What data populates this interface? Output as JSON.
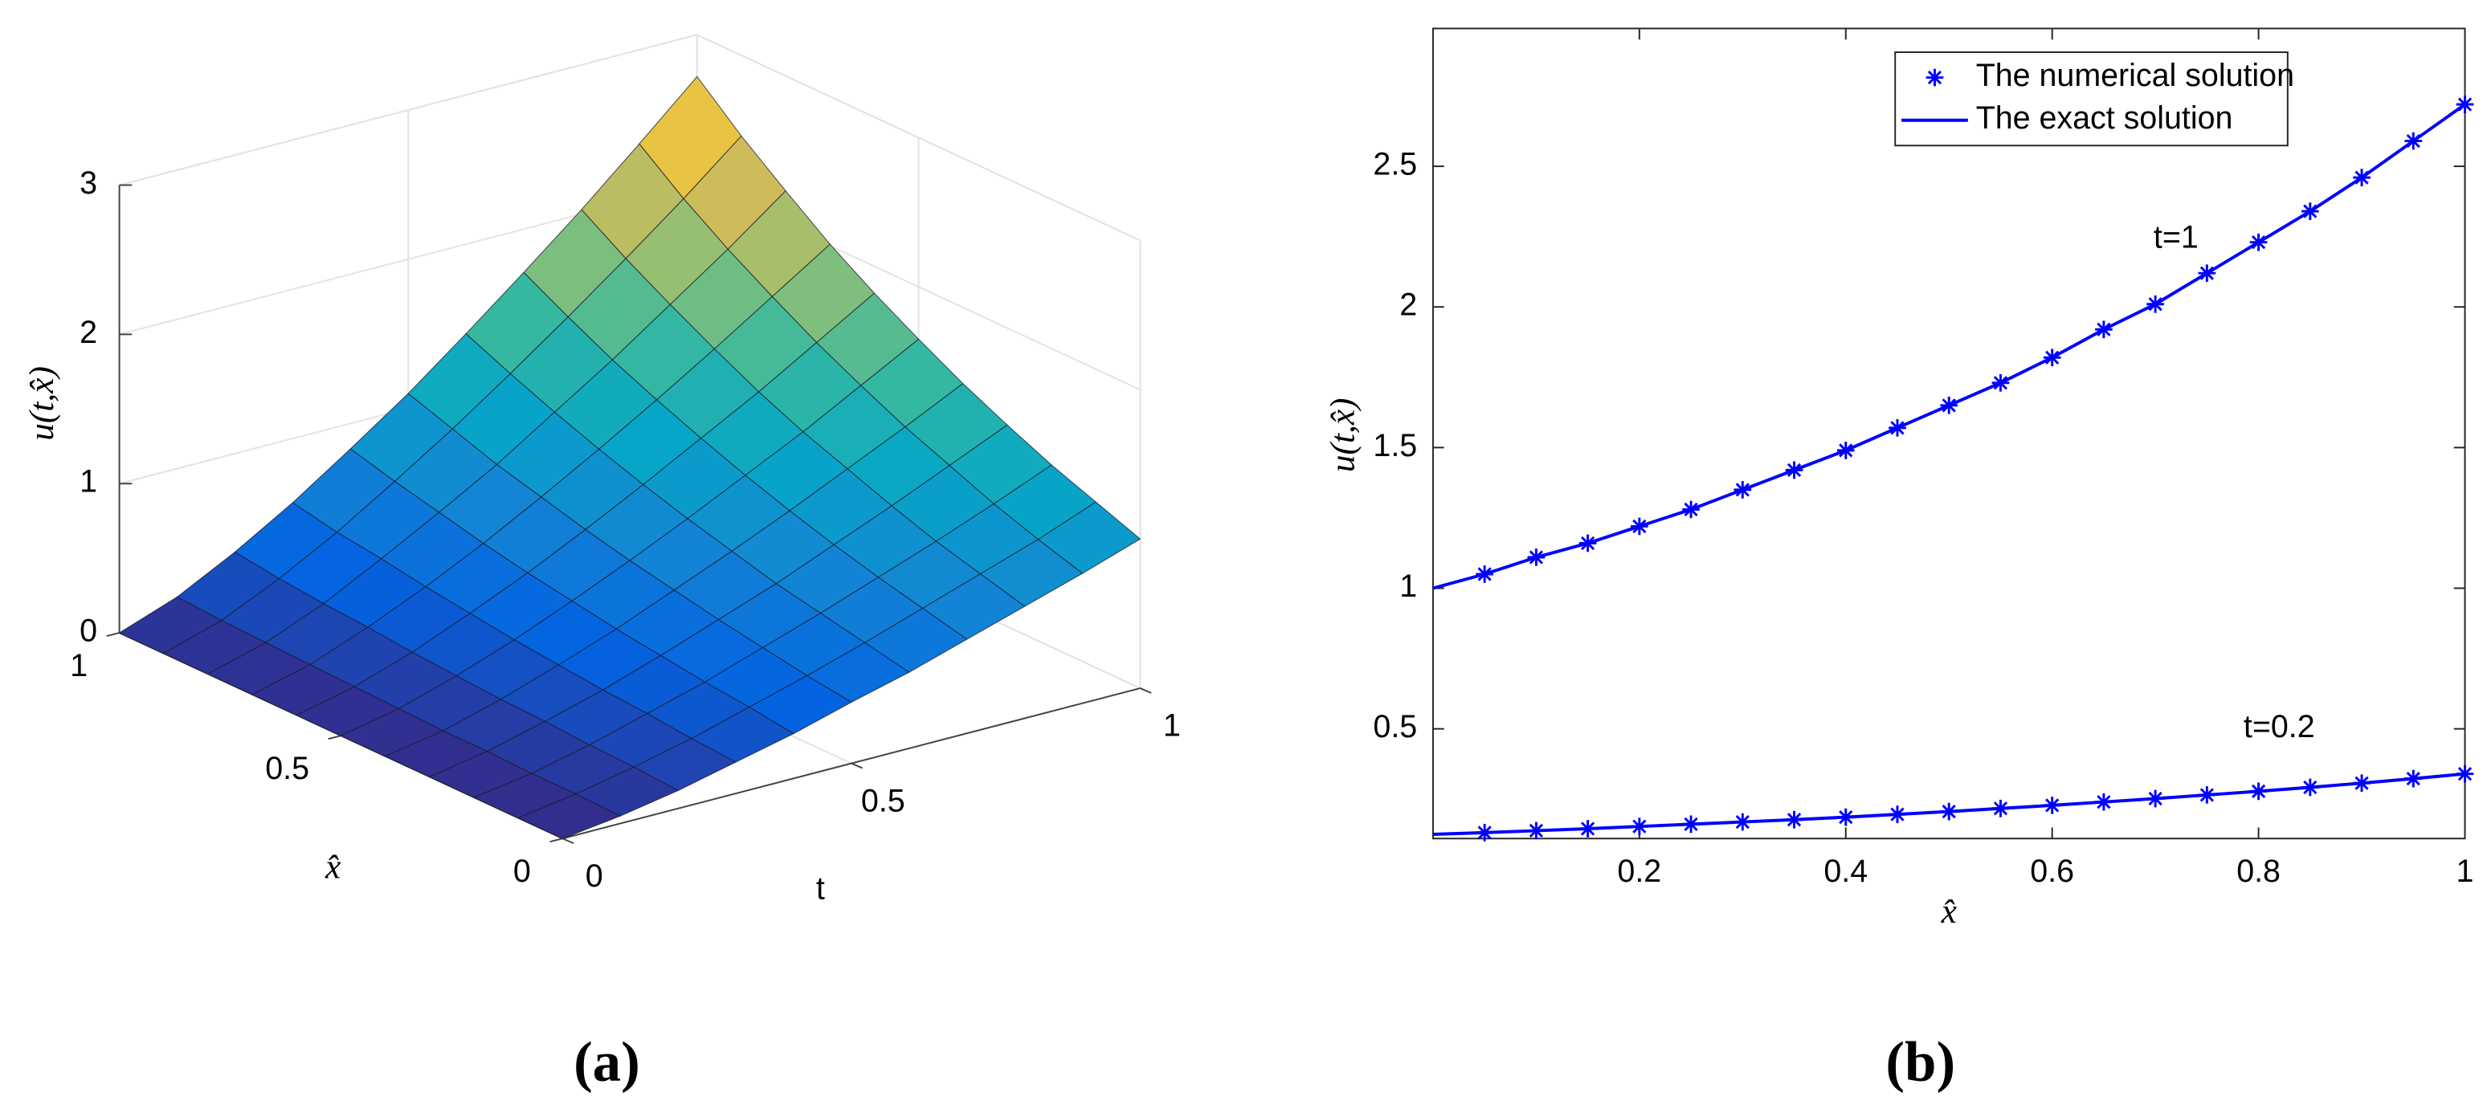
{
  "chart_data": [
    {
      "type": "surface",
      "xlabel": "t",
      "ylabel": "x̂",
      "zlabel": "u(t,x̂)",
      "x": [
        0,
        0.1,
        0.2,
        0.3,
        0.4,
        0.5,
        0.6,
        0.7,
        0.8,
        0.9,
        1
      ],
      "y": [
        0,
        0.1,
        0.2,
        0.3,
        0.4,
        0.5,
        0.6,
        0.7,
        0.8,
        0.9,
        1
      ],
      "z": [
        [
          0,
          0,
          0,
          0,
          0,
          0,
          0,
          0,
          0,
          0,
          0
        ],
        [
          0.05,
          0.06,
          0.06,
          0.07,
          0.07,
          0.08,
          0.09,
          0.1,
          0.11,
          0.12,
          0.14
        ],
        [
          0.12,
          0.14,
          0.15,
          0.17,
          0.18,
          0.2,
          0.22,
          0.25,
          0.27,
          0.3,
          0.34
        ],
        [
          0.21,
          0.23,
          0.26,
          0.28,
          0.31,
          0.34,
          0.38,
          0.42,
          0.47,
          0.51,
          0.57
        ],
        [
          0.3,
          0.34,
          0.37,
          0.41,
          0.45,
          0.5,
          0.55,
          0.61,
          0.68,
          0.75,
          0.83
        ],
        [
          0.41,
          0.45,
          0.5,
          0.55,
          0.61,
          0.67,
          0.74,
          0.82,
          0.9,
          1.0,
          1.1
        ],
        [
          0.51,
          0.57,
          0.63,
          0.69,
          0.77,
          0.85,
          0.94,
          1.04,
          1.15,
          1.27,
          1.4
        ],
        [
          0.63,
          0.7,
          0.77,
          0.85,
          0.94,
          1.04,
          1.15,
          1.27,
          1.4,
          1.55,
          1.71
        ],
        [
          0.75,
          0.83,
          0.91,
          1.01,
          1.12,
          1.23,
          1.36,
          1.51,
          1.67,
          1.84,
          2.03
        ],
        [
          0.87,
          0.96,
          1.06,
          1.18,
          1.3,
          1.44,
          1.59,
          1.76,
          1.94,
          2.14,
          2.37
        ],
        [
          1.0,
          1.11,
          1.22,
          1.35,
          1.49,
          1.65,
          1.82,
          2.01,
          2.23,
          2.46,
          2.72
        ]
      ],
      "xlim": [
        0,
        1
      ],
      "xticks": [
        0,
        0.5,
        1
      ],
      "ylim": [
        0,
        1
      ],
      "yticks": [
        0,
        0.5,
        1
      ],
      "zlim": [
        0,
        3
      ],
      "zticks": [
        0,
        1,
        2,
        3
      ],
      "colormap": "parula",
      "grid": true,
      "caption": "(a)"
    },
    {
      "type": "line",
      "xlabel": "x̂",
      "ylabel": "u(t,x̂)",
      "x": [
        0,
        0.05,
        0.1,
        0.15,
        0.2,
        0.25,
        0.3,
        0.35,
        0.4,
        0.45,
        0.5,
        0.55,
        0.6,
        0.65,
        0.7,
        0.75,
        0.8,
        0.85,
        0.9,
        0.95,
        1
      ],
      "series": [
        {
          "name": "The numerical solution",
          "color": "#0000ff",
          "marker": "asterisk",
          "curves": [
            {
              "values": [
                null,
                1.05,
                1.11,
                1.16,
                1.22,
                1.28,
                1.35,
                1.42,
                1.49,
                1.57,
                1.65,
                1.73,
                1.82,
                1.92,
                2.01,
                2.12,
                2.23,
                2.34,
                2.46,
                2.59,
                2.72
              ]
            },
            {
              "values": [
                null,
                0.131,
                0.138,
                0.145,
                0.153,
                0.161,
                0.169,
                0.177,
                0.186,
                0.196,
                0.206,
                0.217,
                0.228,
                0.24,
                0.252,
                0.265,
                0.278,
                0.292,
                0.307,
                0.323,
                0.34
              ]
            }
          ]
        },
        {
          "name": "The exact solution",
          "color": "#0000ff",
          "marker": "none",
          "curves": [
            {
              "values": [
                1.0,
                1.05,
                1.11,
                1.16,
                1.22,
                1.28,
                1.35,
                1.42,
                1.49,
                1.57,
                1.65,
                1.73,
                1.82,
                1.92,
                2.01,
                2.12,
                2.23,
                2.34,
                2.46,
                2.59,
                2.72
              ]
            },
            {
              "values": [
                0.125,
                0.131,
                0.138,
                0.145,
                0.153,
                0.161,
                0.169,
                0.177,
                0.186,
                0.196,
                0.206,
                0.217,
                0.228,
                0.24,
                0.252,
                0.265,
                0.278,
                0.292,
                0.307,
                0.323,
                0.34
              ]
            }
          ]
        }
      ],
      "annotations": [
        {
          "text": "t=1",
          "x": 0.72,
          "y": 2.24
        },
        {
          "text": "t=0.2",
          "x": 0.82,
          "y": 0.5
        }
      ],
      "xlim": [
        0,
        1
      ],
      "xticks": [
        0.2,
        0.4,
        0.6,
        0.8,
        1
      ],
      "ylim": [
        0.11,
        2.99
      ],
      "yticks": [
        0.5,
        1,
        1.5,
        2,
        2.5
      ],
      "grid": false,
      "legend": "northeast",
      "caption": "(b)"
    }
  ]
}
